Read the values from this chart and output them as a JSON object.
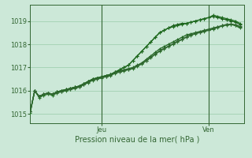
{
  "title": "Pression niveau de la mer( hPa )",
  "background_color": "#cce8d8",
  "grid_color": "#99ccaa",
  "line_colors": [
    "#1a5c1a",
    "#1f6b1f",
    "#226622",
    "#2a7a2a",
    "#336633"
  ],
  "jeu_x": 16,
  "ven_x": 40,
  "ylim": [
    1014.6,
    1019.7
  ],
  "xlim": [
    0,
    48
  ],
  "yticks": [
    1015,
    1016,
    1017,
    1018,
    1019
  ],
  "series": [
    [
      1015.1,
      1016.0,
      1015.75,
      1015.85,
      1015.9,
      1015.85,
      1015.95,
      1016.0,
      1016.05,
      1016.1,
      1016.15,
      1016.2,
      1016.3,
      1016.4,
      1016.5,
      1016.55,
      1016.6,
      1016.65,
      1016.7,
      1016.8,
      1016.9,
      1017.0,
      1017.1,
      1017.3,
      1017.5,
      1017.7,
      1017.9,
      1018.1,
      1018.3,
      1018.5,
      1018.6,
      1018.7,
      1018.8,
      1018.85,
      1018.9,
      1018.9,
      1018.95,
      1019.0,
      1019.05,
      1019.1,
      1019.15,
      1019.2,
      1019.15,
      1019.1,
      1019.05,
      1019.0,
      1018.95,
      1018.85
    ],
    [
      1015.1,
      1016.0,
      1015.75,
      1015.85,
      1015.9,
      1015.85,
      1015.95,
      1016.0,
      1016.05,
      1016.1,
      1016.15,
      1016.2,
      1016.3,
      1016.4,
      1016.5,
      1016.55,
      1016.6,
      1016.65,
      1016.7,
      1016.8,
      1016.9,
      1017.0,
      1017.1,
      1017.3,
      1017.5,
      1017.7,
      1017.9,
      1018.1,
      1018.3,
      1018.5,
      1018.6,
      1018.7,
      1018.75,
      1018.8,
      1018.85,
      1018.9,
      1018.95,
      1019.0,
      1019.05,
      1019.1,
      1019.15,
      1019.25,
      1019.2,
      1019.15,
      1019.1,
      1019.05,
      1019.0,
      1018.9
    ],
    [
      1015.1,
      1016.0,
      1015.75,
      1015.85,
      1015.9,
      1015.85,
      1015.95,
      1016.0,
      1016.05,
      1016.1,
      1016.15,
      1016.2,
      1016.3,
      1016.4,
      1016.5,
      1016.55,
      1016.6,
      1016.65,
      1016.7,
      1016.8,
      1016.85,
      1016.9,
      1016.95,
      1017.0,
      1017.1,
      1017.2,
      1017.35,
      1017.5,
      1017.65,
      1017.8,
      1017.9,
      1018.0,
      1018.1,
      1018.2,
      1018.3,
      1018.4,
      1018.45,
      1018.5,
      1018.55,
      1018.6,
      1018.65,
      1018.7,
      1018.75,
      1018.8,
      1018.85,
      1018.85,
      1018.8,
      1018.7
    ],
    [
      1015.05,
      1016.0,
      1015.7,
      1015.8,
      1015.85,
      1015.8,
      1015.9,
      1015.95,
      1016.0,
      1016.05,
      1016.1,
      1016.15,
      1016.25,
      1016.35,
      1016.45,
      1016.5,
      1016.55,
      1016.6,
      1016.65,
      1016.75,
      1016.8,
      1016.85,
      1016.9,
      1016.95,
      1017.05,
      1017.15,
      1017.28,
      1017.42,
      1017.56,
      1017.7,
      1017.8,
      1017.9,
      1018.0,
      1018.1,
      1018.2,
      1018.3,
      1018.38,
      1018.45,
      1018.5,
      1018.55,
      1018.6,
      1018.65,
      1018.72,
      1018.78,
      1018.83,
      1018.85,
      1018.82,
      1018.75
    ],
    [
      1015.1,
      1016.0,
      1015.75,
      1015.85,
      1015.88,
      1015.85,
      1015.92,
      1015.97,
      1016.02,
      1016.07,
      1016.12,
      1016.17,
      1016.27,
      1016.37,
      1016.47,
      1016.52,
      1016.57,
      1016.62,
      1016.67,
      1016.77,
      1016.82,
      1016.87,
      1016.92,
      1016.97,
      1017.07,
      1017.17,
      1017.3,
      1017.44,
      1017.58,
      1017.72,
      1017.82,
      1017.92,
      1018.02,
      1018.12,
      1018.22,
      1018.32,
      1018.4,
      1018.47,
      1018.52,
      1018.57,
      1018.62,
      1018.67,
      1018.74,
      1018.8,
      1018.85,
      1018.87,
      1018.84,
      1018.77
    ]
  ],
  "marker": "+",
  "markersize": 3.5,
  "linewidth": 0.9,
  "xlabel_fontsize": 7,
  "tick_fontsize": 6,
  "tick_color": "#336633",
  "spine_color": "#336633"
}
